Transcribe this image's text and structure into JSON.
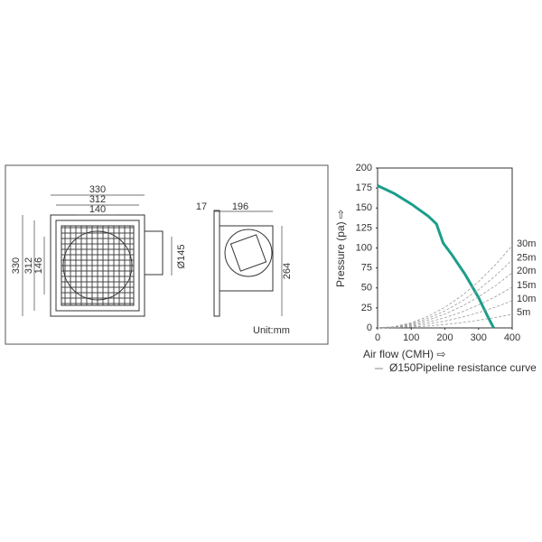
{
  "drawing": {
    "dimensions": {
      "front_width_outer": "330",
      "front_width_inner": "312",
      "grille_width": "140",
      "front_height_outer": "330",
      "front_height_inner": "312",
      "grille_height": "146",
      "duct_diameter": "Ø145",
      "flange_depth": "17",
      "body_depth": "196",
      "body_height": "264"
    },
    "unit": "Unit:mm"
  },
  "chart_data": {
    "type": "line",
    "x_label": "Air flow (CMH) ⇨",
    "y_label": "Pressure (pa) ⇨",
    "legend_note": "Ø150Pipeline resistance curve",
    "xlim": [
      0,
      400
    ],
    "xticks": [
      0,
      100,
      200,
      300,
      400
    ],
    "ylim": [
      0,
      200
    ],
    "yticks": [
      0,
      25,
      50,
      75,
      100,
      125,
      150,
      175,
      200
    ],
    "series": [
      {
        "color": "#1a9e8a",
        "x": [
          0,
          50,
          100,
          150,
          175,
          185,
          195,
          220,
          260,
          300,
          330,
          345
        ],
        "values": [
          178,
          168,
          155,
          140,
          130,
          118,
          106,
          92,
          67,
          38,
          12,
          0
        ]
      },
      {
        "name": "30m",
        "color": "#9a9a9a",
        "dashed": true,
        "x": [
          0,
          50,
          100,
          150,
          200,
          250,
          300,
          350,
          400
        ],
        "values": [
          0,
          1.6,
          6.4,
          14.5,
          25.8,
          40.2,
          57.9,
          78.9,
          103
        ]
      },
      {
        "name": "25m",
        "color": "#9a9a9a",
        "dashed": true,
        "x": [
          0,
          50,
          100,
          150,
          200,
          250,
          300,
          350,
          400
        ],
        "values": [
          0,
          1.3,
          5.3,
          12,
          21.3,
          33.2,
          47.8,
          65.1,
          85
        ]
      },
      {
        "name": "20m",
        "color": "#9a9a9a",
        "dashed": true,
        "x": [
          0,
          50,
          100,
          150,
          200,
          250,
          300,
          350,
          400
        ],
        "values": [
          0,
          1.1,
          4.3,
          9.7,
          17.3,
          27,
          38.8,
          52.8,
          69
        ]
      },
      {
        "name": "15m",
        "color": "#9a9a9a",
        "dashed": true,
        "x": [
          0,
          50,
          100,
          150,
          200,
          250,
          300,
          350,
          400
        ],
        "values": [
          0,
          0.8,
          3.2,
          7.2,
          12.8,
          19.9,
          28.7,
          39,
          51
        ]
      },
      {
        "name": "10m",
        "color": "#9a9a9a",
        "dashed": true,
        "x": [
          0,
          50,
          100,
          150,
          200,
          250,
          300,
          350,
          400
        ],
        "values": [
          0,
          0.5,
          2.1,
          4.8,
          8.5,
          13.3,
          19.1,
          26,
          34
        ]
      },
      {
        "name": "5m",
        "color": "#9a9a9a",
        "dashed": true,
        "x": [
          0,
          50,
          100,
          150,
          200,
          250,
          300,
          350,
          400
        ],
        "values": [
          0,
          0.3,
          1.1,
          2.4,
          4.3,
          6.6,
          9.6,
          13,
          17
        ]
      }
    ]
  }
}
